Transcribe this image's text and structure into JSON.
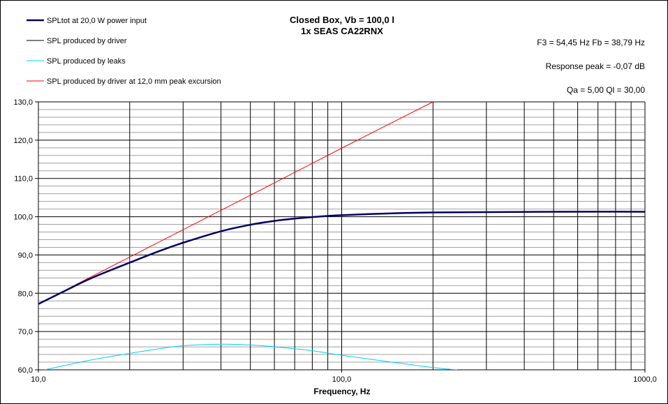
{
  "chart_data": {
    "type": "line",
    "title": [
      "Closed Box, Vb = 100,0 l",
      "1x SEAS CA22RNX"
    ],
    "annotations": [
      "F3 = 54,45  Hz  Fb = 38,79  Hz",
      "Response peak = -0,07  dB",
      "Qa = 5,00  Ql = 30,00"
    ],
    "xlabel": "Frequency, Hz",
    "ylabel": "",
    "xscale": "log",
    "xlim": [
      10,
      1000
    ],
    "ylim": [
      60,
      130
    ],
    "x_tick_labels": [
      "10,0",
      "100,0",
      "1000,0"
    ],
    "y_tick_labels": [
      "60,0",
      "70,0",
      "80,0",
      "90,0",
      "100,0",
      "110,0",
      "120,0",
      "130,0"
    ],
    "grid": true,
    "legend_placement": "top-left",
    "series": [
      {
        "name": "SPLtot at 20,0 W power input",
        "color": "#000066",
        "x": [
          10,
          12,
          15,
          20,
          25,
          30,
          40,
          50,
          60,
          70,
          80,
          100,
          150,
          200,
          300,
          500,
          1000
        ],
        "y": [
          77.2,
          80.3,
          84.0,
          88.0,
          91.0,
          93.2,
          96.2,
          97.9,
          98.9,
          99.5,
          99.9,
          100.4,
          100.9,
          101.1,
          101.2,
          101.3,
          101.3
        ]
      },
      {
        "name": "SPL produced by driver",
        "color": "#000000",
        "x": [
          10,
          12,
          15,
          20,
          25,
          30,
          40,
          50,
          60,
          70,
          80,
          100,
          150,
          200,
          300,
          500,
          1000
        ],
        "y": [
          77.2,
          80.3,
          84.0,
          88.0,
          91.0,
          93.2,
          96.2,
          97.9,
          98.9,
          99.5,
          99.9,
          100.4,
          100.9,
          101.1,
          101.2,
          101.3,
          101.3
        ]
      },
      {
        "name": "SPL produced by leaks",
        "color": "#00ccff",
        "x": [
          10.5,
          12,
          15,
          20,
          25,
          30,
          40,
          50,
          60,
          80,
          100,
          150,
          200,
          240
        ],
        "y": [
          60.0,
          61.0,
          62.6,
          64.3,
          65.5,
          66.3,
          66.7,
          66.5,
          66.0,
          65.0,
          63.8,
          61.9,
          60.6,
          60.0
        ]
      },
      {
        "name": "SPL produced by driver at 12,0 mm peak excursion",
        "color": "#ff0000",
        "x": [
          10,
          12,
          15,
          20,
          30,
          50,
          100,
          200
        ],
        "y": [
          77.2,
          80.4,
          84.4,
          89.45,
          96.6,
          105.6,
          117.9,
          130.0
        ]
      }
    ]
  }
}
